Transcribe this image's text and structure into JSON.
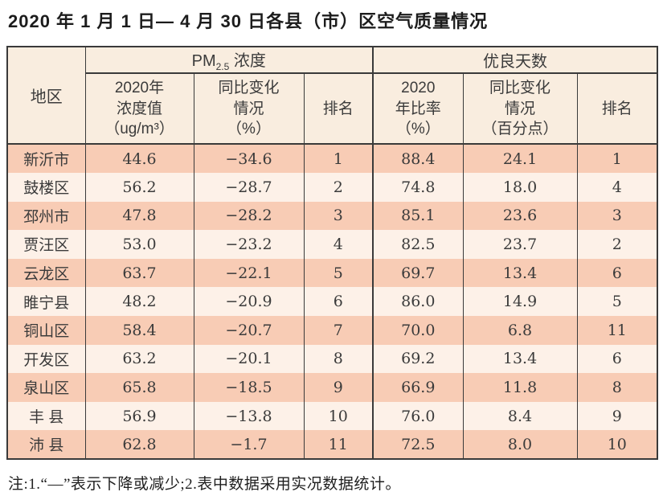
{
  "page": {
    "title": "2020 年 1 月 1 日— 4 月 30 日各县（市）区空气质量情况",
    "footnote": "注:1.“—”表示下降或减少;2.表中数据采用实况数据统计。"
  },
  "table": {
    "region_header": "地区",
    "pm_group": {
      "prefix": "PM",
      "sub": "2.5",
      "suffix": " 浓度"
    },
    "days_group_label": "优良天数",
    "subheaders": [
      "2020年\n浓度值\n（ug/m³）",
      "同比变化\n情况\n（%）",
      "排名",
      "2020\n年比率\n（%）",
      "同比变化\n情况\n（百分点）",
      "排名"
    ],
    "rows": [
      {
        "region": "新沂市",
        "pm_value": "44.6",
        "pm_change": "−34.6",
        "pm_rank": "1",
        "days_ratio": "88.4",
        "days_change": "24.1",
        "days_rank": "1"
      },
      {
        "region": "鼓楼区",
        "pm_value": "56.2",
        "pm_change": "−28.7",
        "pm_rank": "2",
        "days_ratio": "74.8",
        "days_change": "18.0",
        "days_rank": "4"
      },
      {
        "region": "邳州市",
        "pm_value": "47.8",
        "pm_change": "−28.2",
        "pm_rank": "3",
        "days_ratio": "85.1",
        "days_change": "23.6",
        "days_rank": "3"
      },
      {
        "region": "贾汪区",
        "pm_value": "53.0",
        "pm_change": "−23.2",
        "pm_rank": "4",
        "days_ratio": "82.5",
        "days_change": "23.7",
        "days_rank": "2"
      },
      {
        "region": "云龙区",
        "pm_value": "63.7",
        "pm_change": "−22.1",
        "pm_rank": "5",
        "days_ratio": "69.7",
        "days_change": "13.4",
        "days_rank": "6"
      },
      {
        "region": "睢宁县",
        "pm_value": "48.2",
        "pm_change": "−20.9",
        "pm_rank": "6",
        "days_ratio": "86.0",
        "days_change": "14.9",
        "days_rank": "5"
      },
      {
        "region": "铜山区",
        "pm_value": "58.4",
        "pm_change": "−20.7",
        "pm_rank": "7",
        "days_ratio": "70.0",
        "days_change": "6.8",
        "days_rank": "11"
      },
      {
        "region": "开发区",
        "pm_value": "63.2",
        "pm_change": "−20.1",
        "pm_rank": "8",
        "days_ratio": "69.2",
        "days_change": "13.4",
        "days_rank": "6"
      },
      {
        "region": "泉山区",
        "pm_value": "65.8",
        "pm_change": "−18.5",
        "pm_rank": "9",
        "days_ratio": "66.9",
        "days_change": "11.8",
        "days_rank": "8"
      },
      {
        "region": "丰 县",
        "pm_value": "56.9",
        "pm_change": "−13.8",
        "pm_rank": "10",
        "days_ratio": "76.0",
        "days_change": "8.4",
        "days_rank": "9"
      },
      {
        "region": "沛 县",
        "pm_value": "62.8",
        "pm_change": "−1.7",
        "pm_rank": "11",
        "days_ratio": "72.5",
        "days_change": "8.0",
        "days_rank": "10"
      }
    ]
  },
  "colors": {
    "header_bg": "#f9eddf",
    "row_salmon": "#f8ccb5",
    "row_light": "#fdf1e8",
    "border": "#3a3a3a",
    "text": "#3b3b3b",
    "title_color": "#1c1c1c"
  }
}
